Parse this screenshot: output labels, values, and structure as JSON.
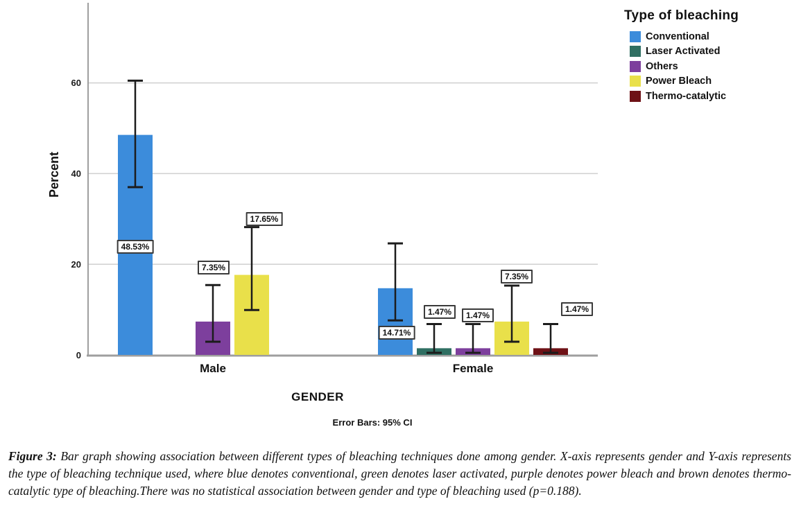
{
  "figure": {
    "caption_label": "Figure 3:",
    "caption_text": "Bar graph showing association between different types of bleaching techniques done among gender. X-axis represents gender and Y-axis represents the type of bleaching technique used, where blue denotes conventional, green denotes laser activated, purple denotes power bleach and brown denotes thermo-catalytic type of bleaching.There was no statistical association between gender and type of bleaching used (p=0.188).",
    "p_value": "p=0.188"
  },
  "chart_data": {
    "type": "bar",
    "title": "",
    "xlabel": "GENDER",
    "ylabel": "Percent",
    "footnote": "Error Bars: 95% CI",
    "legend_title": "Type of bleaching",
    "legend_position": "top-right",
    "grid": true,
    "ylim": [
      0,
      78
    ],
    "yticks": [
      0,
      20,
      40,
      60
    ],
    "categories": [
      "Male",
      "Female"
    ],
    "series": [
      {
        "name": "Conventional",
        "color": "#3C8CDB",
        "points": [
          {
            "value": 48.53,
            "label": "48.53%",
            "ci": [
              37.0,
              60.5
            ],
            "label_y": 23.9,
            "label_dx": 0
          },
          {
            "value": 14.71,
            "label": "14.71%",
            "ci": [
              7.6,
              24.6
            ],
            "label_y": 4.9,
            "label_dx": 2
          }
        ]
      },
      {
        "name": "Laser Activated",
        "color": "#2F6F62",
        "points": [
          {
            "value": null
          },
          {
            "value": 1.47,
            "label": "1.47%",
            "ci": [
              0.45,
              6.8
            ],
            "label_y": 9.5,
            "label_dx": 8
          }
        ]
      },
      {
        "name": "Others",
        "color": "#7D3F9D",
        "points": [
          {
            "value": 7.35,
            "label": "7.35%",
            "ci": [
              2.9,
              15.4
            ],
            "label_y": 19.3,
            "label_dx": 1
          },
          {
            "value": 1.47,
            "label": "1.47%",
            "ci": [
              0.45,
              6.8
            ],
            "label_y": 8.7,
            "label_dx": 7
          }
        ]
      },
      {
        "name": "Power Bleach",
        "color": "#E9E04A",
        "points": [
          {
            "value": 17.65,
            "label": "17.65%",
            "ci": [
              9.9,
              28.2
            ],
            "label_y": 30.0,
            "label_dx": 18
          },
          {
            "value": 7.35,
            "label": "7.35%",
            "ci": [
              2.9,
              15.3
            ],
            "label_y": 17.3,
            "label_dx": 7
          }
        ]
      },
      {
        "name": "Thermo-catalytic",
        "color": "#6E1116",
        "points": [
          {
            "value": null
          },
          {
            "value": 1.47,
            "label": "1.47%",
            "ci": [
              0.45,
              6.8
            ],
            "label_y": 10.1,
            "label_dx": 38
          }
        ]
      }
    ]
  }
}
